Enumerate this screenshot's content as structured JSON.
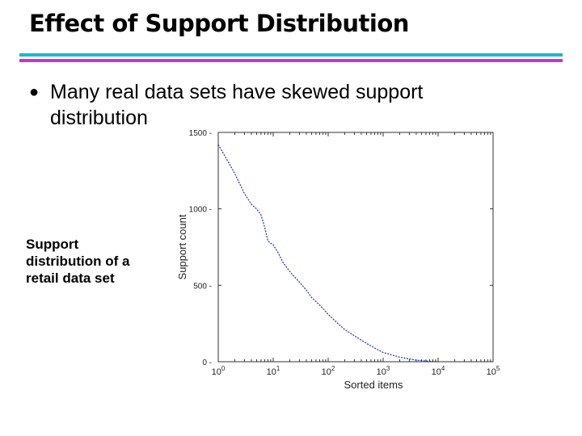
{
  "slide": {
    "title": "Effect of Support Distribution",
    "bullet": "Many real data sets have skewed support distribution",
    "caption": "Support distribution of a retail data set"
  },
  "colors": {
    "rule_top": "#19b7d6",
    "rule_bottom": "#cc33cc",
    "series": "#1a2bbf"
  },
  "chart_data": {
    "type": "line",
    "xlabel": "Sorted items",
    "ylabel": "Support count",
    "x_scale": "log",
    "xlim": [
      1,
      100000
    ],
    "ylim": [
      0,
      1500
    ],
    "y_ticks": [
      {
        "value": 0,
        "label": "0"
      },
      {
        "value": 500,
        "label": "500"
      },
      {
        "value": 1000,
        "label": "1000"
      },
      {
        "value": 1500,
        "label": "1500"
      }
    ],
    "x_ticks": [
      {
        "value": 1,
        "base": "10",
        "exp": "0"
      },
      {
        "value": 10,
        "base": "10",
        "exp": "1"
      },
      {
        "value": 100,
        "base": "10",
        "exp": "2"
      },
      {
        "value": 1000,
        "base": "10",
        "exp": "3"
      },
      {
        "value": 10000,
        "base": "10",
        "exp": "4"
      },
      {
        "value": 100000,
        "base": "10",
        "exp": "5"
      }
    ],
    "series": [
      {
        "points": [
          [
            1,
            1420
          ],
          [
            1.4,
            1330
          ],
          [
            2,
            1230
          ],
          [
            3,
            1100
          ],
          [
            4,
            1030
          ],
          [
            5,
            1000
          ],
          [
            6,
            960
          ],
          [
            7,
            880
          ],
          [
            8,
            790
          ],
          [
            9,
            775
          ],
          [
            10,
            765
          ],
          [
            12,
            720
          ],
          [
            15,
            650
          ],
          [
            20,
            590
          ],
          [
            30,
            520
          ],
          [
            40,
            470
          ],
          [
            50,
            420
          ],
          [
            70,
            370
          ],
          [
            100,
            310
          ],
          [
            150,
            250
          ],
          [
            200,
            210
          ],
          [
            300,
            170
          ],
          [
            500,
            120
          ],
          [
            700,
            90
          ],
          [
            1000,
            60
          ],
          [
            2000,
            30
          ],
          [
            4000,
            10
          ],
          [
            7000,
            3
          ],
          [
            10000,
            0
          ]
        ]
      }
    ]
  }
}
